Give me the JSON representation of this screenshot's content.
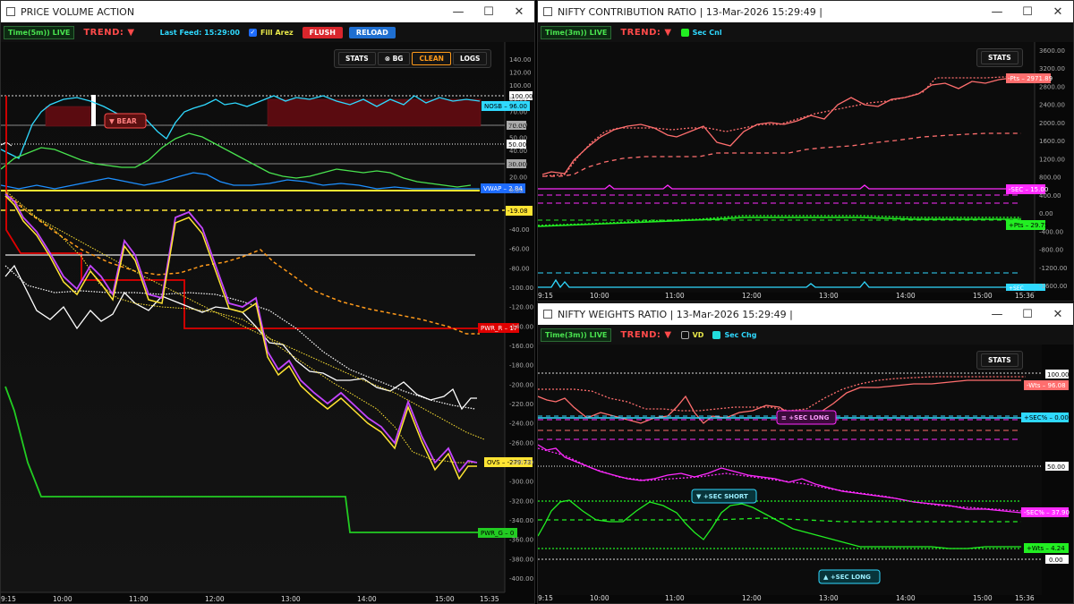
{
  "pva": {
    "title": "PRICE VOLUME ACTION",
    "timeframe": "Time(5m)) LIVE",
    "trend_label": "TREND:",
    "trend_arrow": "▼",
    "last_feed": "Last Feed: 15:29:00",
    "fill_area_label": "Fill Arez",
    "flush_label": "FLUSH",
    "reload_label": "RELOAD",
    "pill": [
      "STATS",
      "⊗ BG",
      "CLEAN",
      "LOGS"
    ],
    "y_ticks_upper": [
      "140.00",
      "120.00",
      "100.00",
      "80.00",
      "70.00",
      "60.00",
      "50.00",
      "40.00",
      "30.00",
      "20.00",
      "0.00"
    ],
    "y_ticks_lower": [
      "-40.00",
      "-60.00",
      "-80.00",
      "-100.00",
      "-120.00",
      "-140.00",
      "-160.00",
      "-180.00",
      "-200.00",
      "-220.00",
      "-240.00",
      "-260.00",
      "-280.00",
      "-300.00",
      "-320.00",
      "-340.00",
      "-360.00",
      "-380.00",
      "-400.00"
    ],
    "x_ticks": [
      "10:00",
      "11:00",
      "12:00",
      "13:00",
      "14:00",
      "15:00",
      "15:35"
    ],
    "x_start": "9:15",
    "bear_label": "▼ BEAR",
    "tags": {
      "nosb": "NOSB – 96.00",
      "vwap": "VWAP – 2.84",
      "neg19": "-19.08",
      "pwr_r": "PWR_R – 17",
      "ovs": "OVS – -279.73",
      "pwr_g": "PWR_G – 0",
      "v100": "100.00",
      "v70": "70.00",
      "v50": "50.00",
      "v30": "30.00"
    }
  },
  "ncr": {
    "title": "NIFTY CONTRIBUTION RATIO | 13-Mar-2026 15:29:49 |",
    "timeframe": "Time(3m)) LIVE",
    "trend_label": "TREND:",
    "trend_arrow": "▼",
    "sec_label": "Sec Cnl",
    "stats_label": "STATS",
    "y_ticks": [
      "3600.00",
      "3200.00",
      "2800.00",
      "2400.00",
      "2000.00",
      "1600.00",
      "1200.00",
      "800.00",
      "400.00",
      "0.00",
      "-400.00",
      "-800.00",
      "-1200.00",
      "-1600.00"
    ],
    "x_ticks": [
      "10:00",
      "11:00",
      "12:00",
      "13:00",
      "14:00",
      "15:00",
      "15:36"
    ],
    "x_start": "9:15",
    "tags": {
      "pts_neg": "-Pts – 2971.89",
      "sec": "-SEC – 15.00",
      "pts_pos": "+Pts – 29.75",
      "sec_bottom": "+SEC"
    }
  },
  "nwr": {
    "title": "NIFTY WEIGHTS RATIO | 13-Mar-2026 15:29:49 |",
    "timeframe": "Time(3m)) LIVE",
    "trend_label": "TREND:",
    "trend_arrow": "▼",
    "vd_label": "VD",
    "sec_chg_label": "Sec Chg",
    "stats_label": "STATS",
    "x_ticks": [
      "10:00",
      "11:00",
      "12:00",
      "13:00",
      "14:00",
      "15:00",
      "15:36"
    ],
    "x_start": "9:15",
    "badges": {
      "sec_long_1": "≡ +SEC LONG",
      "sec_short": "▼ +SEC SHORT",
      "sec_long_2": "▲ +SEC LONG"
    },
    "tags": {
      "v100": "100.00",
      "wts_neg": "-Wts – 96.08",
      "sec_chg": "+SEC% – 0.00",
      "v50": "50.00",
      "sec_pct": "-SEC% – 37.90",
      "wts_pos": "+Wts – 4.24",
      "v0": "0.00"
    }
  },
  "colors": {
    "cyan": "#2fd9ff",
    "green": "#49e34f",
    "salmon": "#ff6e6e",
    "magenta": "#ff2bff",
    "yellow": "#ffe433",
    "orange": "#ff9a1a",
    "red": "#e00000"
  }
}
